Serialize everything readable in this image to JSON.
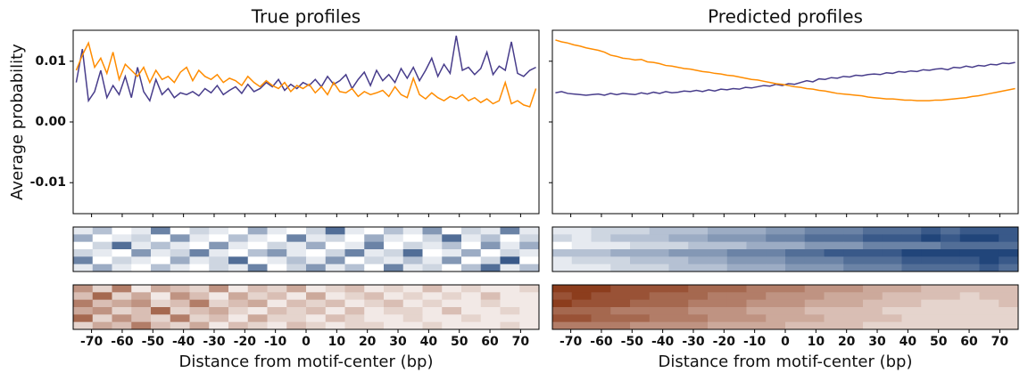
{
  "chart_data": [
    {
      "type": "line",
      "title": "True profiles",
      "ylabel": "Average probability",
      "x": [
        -75,
        -73,
        -71,
        -69,
        -67,
        -65,
        -63,
        -61,
        -59,
        -57,
        -55,
        -53,
        -51,
        -49,
        -47,
        -45,
        -43,
        -41,
        -39,
        -37,
        -35,
        -33,
        -31,
        -29,
        -27,
        -25,
        -23,
        -21,
        -19,
        -17,
        -15,
        -13,
        -11,
        -9,
        -7,
        -5,
        -3,
        -1,
        1,
        3,
        5,
        7,
        9,
        11,
        13,
        15,
        17,
        19,
        21,
        23,
        25,
        27,
        29,
        31,
        33,
        35,
        37,
        39,
        41,
        43,
        45,
        47,
        49,
        51,
        53,
        55,
        57,
        59,
        61,
        63,
        65,
        67,
        69,
        71,
        73,
        75
      ],
      "xlim": [
        -76,
        76
      ],
      "xticks": [
        -70,
        -60,
        -50,
        -40,
        -30,
        -20,
        -10,
        0,
        10,
        20,
        30,
        40,
        50,
        60,
        70
      ],
      "xtick_labels": false,
      "ylim": [
        -0.0151,
        0.0151
      ],
      "yticks": [
        -0.01,
        {
          "value": 0,
          "label": "0.00"
        },
        0.01
      ],
      "ytick_labels": true,
      "series": [
        {
          "color": "#483d8b",
          "values": [
            0.0065,
            0.012,
            0.0035,
            0.005,
            0.0085,
            0.004,
            0.006,
            0.0045,
            0.0075,
            0.004,
            0.009,
            0.005,
            0.0035,
            0.007,
            0.0045,
            0.0055,
            0.004,
            0.0048,
            0.0045,
            0.005,
            0.0043,
            0.0055,
            0.0048,
            0.006,
            0.0045,
            0.0052,
            0.0058,
            0.0047,
            0.0062,
            0.005,
            0.0055,
            0.0065,
            0.0058,
            0.007,
            0.0052,
            0.0062,
            0.0055,
            0.0065,
            0.006,
            0.007,
            0.0058,
            0.0075,
            0.0062,
            0.0068,
            0.0078,
            0.0055,
            0.007,
            0.0082,
            0.006,
            0.0085,
            0.0068,
            0.0078,
            0.0065,
            0.0088,
            0.0072,
            0.009,
            0.0068,
            0.0085,
            0.0105,
            0.0075,
            0.0095,
            0.008,
            0.0142,
            0.0085,
            0.009,
            0.0078,
            0.0088,
            0.0115,
            0.0078,
            0.0092,
            0.0085,
            0.0132,
            0.008,
            0.0075,
            0.0085,
            0.009
          ]
        },
        {
          "color": "#ff8c00",
          "values": [
            0.0085,
            0.011,
            0.013,
            0.009,
            0.0105,
            0.008,
            0.0115,
            0.007,
            0.0095,
            0.0085,
            0.0075,
            0.009,
            0.0065,
            0.0085,
            0.007,
            0.0075,
            0.0065,
            0.0082,
            0.009,
            0.0068,
            0.0085,
            0.0075,
            0.007,
            0.0078,
            0.0065,
            0.0072,
            0.0068,
            0.006,
            0.0075,
            0.0065,
            0.0058,
            0.0068,
            0.006,
            0.0055,
            0.0065,
            0.005,
            0.006,
            0.0055,
            0.0062,
            0.0048,
            0.0058,
            0.0045,
            0.0065,
            0.005,
            0.0048,
            0.0055,
            0.0042,
            0.005,
            0.0045,
            0.0048,
            0.0052,
            0.0042,
            0.0058,
            0.0045,
            0.004,
            0.0072,
            0.0045,
            0.0038,
            0.0048,
            0.004,
            0.0035,
            0.0042,
            0.0038,
            0.0045,
            0.0035,
            0.004,
            0.0032,
            0.0038,
            0.003,
            0.0035,
            0.0065,
            0.003,
            0.0035,
            0.0028,
            0.0025,
            0.0055
          ]
        }
      ]
    },
    {
      "type": "line",
      "title": "Predicted profiles",
      "x": [
        -75,
        -73,
        -71,
        -69,
        -67,
        -65,
        -63,
        -61,
        -59,
        -57,
        -55,
        -53,
        -51,
        -49,
        -47,
        -45,
        -43,
        -41,
        -39,
        -37,
        -35,
        -33,
        -31,
        -29,
        -27,
        -25,
        -23,
        -21,
        -19,
        -17,
        -15,
        -13,
        -11,
        -9,
        -7,
        -5,
        -3,
        -1,
        1,
        3,
        5,
        7,
        9,
        11,
        13,
        15,
        17,
        19,
        21,
        23,
        25,
        27,
        29,
        31,
        33,
        35,
        37,
        39,
        41,
        43,
        45,
        47,
        49,
        51,
        53,
        55,
        57,
        59,
        61,
        63,
        65,
        67,
        69,
        71,
        73,
        75
      ],
      "xlim": [
        -76,
        76
      ],
      "xticks": [
        -70,
        -60,
        -50,
        -40,
        -30,
        -20,
        -10,
        0,
        10,
        20,
        30,
        40,
        50,
        60,
        70
      ],
      "xtick_labels": false,
      "ylim": [
        -0.0151,
        0.0151
      ],
      "yticks": [
        -0.01,
        0,
        0.01
      ],
      "ytick_labels": false,
      "series": [
        {
          "color": "#483d8b",
          "values": [
            0.0048,
            0.005,
            0.0047,
            0.0046,
            0.0045,
            0.0044,
            0.0045,
            0.0046,
            0.0044,
            0.0047,
            0.0045,
            0.0047,
            0.0046,
            0.0045,
            0.0048,
            0.0046,
            0.0049,
            0.0047,
            0.005,
            0.0048,
            0.0049,
            0.0051,
            0.005,
            0.0052,
            0.005,
            0.0053,
            0.0051,
            0.0054,
            0.0053,
            0.0055,
            0.0054,
            0.0057,
            0.0056,
            0.0058,
            0.006,
            0.0059,
            0.0062,
            0.006,
            0.0063,
            0.0062,
            0.0065,
            0.0068,
            0.0066,
            0.0071,
            0.007,
            0.0073,
            0.0072,
            0.0075,
            0.0074,
            0.0077,
            0.0076,
            0.0078,
            0.0079,
            0.0078,
            0.0081,
            0.008,
            0.0083,
            0.0082,
            0.0084,
            0.0083,
            0.0086,
            0.0085,
            0.0087,
            0.0088,
            0.0086,
            0.009,
            0.0089,
            0.0092,
            0.009,
            0.0093,
            0.0092,
            0.0095,
            0.0094,
            0.0097,
            0.0096,
            0.0098
          ]
        },
        {
          "color": "#ff8c00",
          "values": [
            0.0135,
            0.0132,
            0.013,
            0.0127,
            0.0125,
            0.0122,
            0.012,
            0.0118,
            0.0115,
            0.011,
            0.0108,
            0.0105,
            0.0104,
            0.0102,
            0.0103,
            0.0099,
            0.0098,
            0.0096,
            0.0093,
            0.0092,
            0.009,
            0.0088,
            0.0087,
            0.0085,
            0.0083,
            0.0082,
            0.008,
            0.0079,
            0.0077,
            0.0076,
            0.0074,
            0.0072,
            0.007,
            0.0069,
            0.0067,
            0.0065,
            0.0063,
            0.0062,
            0.006,
            0.0058,
            0.0057,
            0.0055,
            0.0054,
            0.0052,
            0.0051,
            0.0049,
            0.0047,
            0.0046,
            0.0045,
            0.0044,
            0.0043,
            0.0041,
            0.004,
            0.0039,
            0.0038,
            0.0038,
            0.0037,
            0.0036,
            0.0036,
            0.0035,
            0.0035,
            0.0035,
            0.0036,
            0.0036,
            0.0037,
            0.0038,
            0.0039,
            0.004,
            0.0042,
            0.0043,
            0.0045,
            0.0047,
            0.0049,
            0.0051,
            0.0053,
            0.0055
          ]
        }
      ]
    },
    {
      "type": "heatmap",
      "color": "#08306b",
      "xlim": [
        -76,
        76
      ],
      "zlim": [
        0,
        1
      ],
      "z": [
        [
          0.1,
          0.3,
          0,
          0.1,
          0.6,
          0,
          0.2,
          0.1,
          0,
          0.4,
          0.1,
          0,
          0.2,
          0.7,
          0.1,
          0,
          0.3,
          0.1,
          0.5,
          0,
          0.2,
          0.1,
          0.6,
          0.1
        ],
        [
          0.4,
          0,
          0.1,
          0.2,
          0,
          0.5,
          0.1,
          0,
          0.3,
          0.1,
          0,
          0.6,
          0.1,
          0.2,
          0,
          0.4,
          0.1,
          0,
          0.2,
          0.7,
          0.1,
          0.3,
          0,
          0.2
        ],
        [
          0,
          0.2,
          0.7,
          0.1,
          0.3,
          0.1,
          0,
          0.5,
          0.1,
          0,
          0.2,
          0.1,
          0.4,
          0,
          0.1,
          0.6,
          0,
          0.2,
          0.1,
          0.3,
          0,
          0.5,
          0.1,
          0.4
        ],
        [
          0.2,
          0.1,
          0,
          0.5,
          0.1,
          0.2,
          0.6,
          0.1,
          0,
          0.3,
          0.5,
          0.1,
          0,
          0.2,
          0.6,
          0.1,
          0.2,
          0.7,
          0,
          0.1,
          0.4,
          0,
          0.2,
          0.1
        ],
        [
          0.6,
          0,
          0.2,
          0.1,
          0,
          0.4,
          0.1,
          0.2,
          0.7,
          0,
          0.1,
          0.3,
          0.1,
          0.5,
          0,
          0.2,
          0.1,
          0.3,
          0.1,
          0.5,
          0,
          0.2,
          0.8,
          0
        ],
        [
          0.1,
          0.4,
          0.1,
          0,
          0.3,
          0.1,
          0,
          0.2,
          0.1,
          0.6,
          0,
          0.2,
          0.5,
          0.1,
          0.3,
          0,
          0.6,
          0.1,
          0.2,
          0,
          0.3,
          0.7,
          0.1,
          0.3
        ]
      ]
    },
    {
      "type": "heatmap",
      "color": "#08306b",
      "xlim": [
        -76,
        76
      ],
      "zlim": [
        0,
        1
      ],
      "z": [
        [
          0.1,
          0.1,
          0.2,
          0.2,
          0.2,
          0.3,
          0.3,
          0.3,
          0.4,
          0.4,
          0.4,
          0.5,
          0.5,
          0.6,
          0.6,
          0.6,
          0.7,
          0.7,
          0.7,
          0.8,
          0.7,
          0.8,
          0.8,
          0.8
        ],
        [
          0.2,
          0.1,
          0.2,
          0.3,
          0.3,
          0.3,
          0.4,
          0.4,
          0.5,
          0.5,
          0.5,
          0.6,
          0.6,
          0.7,
          0.7,
          0.7,
          0.8,
          0.8,
          0.8,
          0.9,
          0.8,
          0.9,
          0.9,
          0.8
        ],
        [
          0,
          0.1,
          0.1,
          0.1,
          0.2,
          0.2,
          0.2,
          0.3,
          0.3,
          0.3,
          0.4,
          0.4,
          0.4,
          0.5,
          0.5,
          0.5,
          0.6,
          0.6,
          0.6,
          0.6,
          0.7,
          0.7,
          0.7,
          0.7
        ],
        [
          0.3,
          0.3,
          0.3,
          0.4,
          0.4,
          0.4,
          0.5,
          0.5,
          0.5,
          0.6,
          0.6,
          0.6,
          0.7,
          0.7,
          0.8,
          0.8,
          0.8,
          0.8,
          0.9,
          0.9,
          0.9,
          0.9,
          0.9,
          0.9
        ],
        [
          0.1,
          0.2,
          0.2,
          0.2,
          0.3,
          0.3,
          0.3,
          0.4,
          0.4,
          0.5,
          0.5,
          0.5,
          0.6,
          0.6,
          0.6,
          0.7,
          0.7,
          0.7,
          0.8,
          0.8,
          0.8,
          0.8,
          0.9,
          0.8
        ],
        [
          0.1,
          0.1,
          0.1,
          0.2,
          0.2,
          0.2,
          0.3,
          0.3,
          0.3,
          0.4,
          0.4,
          0.4,
          0.5,
          0.5,
          0.5,
          0.6,
          0.6,
          0.6,
          0.7,
          0.7,
          0.7,
          0.7,
          0.8,
          0.7
        ]
      ]
    },
    {
      "type": "heatmap",
      "color": "#7f2704",
      "xlim": [
        -76,
        76
      ],
      "zlim": [
        0,
        1
      ],
      "xlabel": "Distance from motif-center (bp)",
      "xticks": [
        -70,
        -60,
        -50,
        -40,
        -30,
        -20,
        -10,
        0,
        10,
        20,
        30,
        40,
        50,
        60,
        70
      ],
      "xtick_labels": true,
      "z": [
        [
          0.5,
          0.2,
          0.6,
          0.1,
          0.4,
          0.3,
          0.2,
          0.5,
          0.1,
          0.3,
          0.2,
          0.4,
          0.1,
          0.2,
          0.3,
          0.1,
          0.2,
          0.1,
          0.3,
          0.1,
          0.2,
          0.1,
          0.1,
          0.2
        ],
        [
          0.3,
          0.7,
          0.2,
          0.4,
          0.1,
          0.5,
          0.3,
          0.1,
          0.4,
          0.2,
          0.3,
          0.1,
          0.4,
          0.1,
          0.2,
          0.3,
          0.1,
          0.2,
          0.1,
          0.2,
          0.1,
          0.3,
          0.1,
          0.1
        ],
        [
          0.6,
          0.3,
          0.4,
          0.5,
          0.2,
          0.3,
          0.6,
          0.2,
          0.3,
          0.4,
          0.1,
          0.3,
          0.2,
          0.3,
          0.1,
          0.2,
          0.3,
          0.1,
          0.2,
          0.1,
          0.1,
          0.2,
          0.1,
          0.1
        ],
        [
          0.4,
          0.5,
          0.2,
          0.3,
          0.7,
          0.2,
          0.3,
          0.4,
          0.2,
          0.1,
          0.3,
          0.2,
          0.3,
          0.1,
          0.3,
          0.1,
          0.2,
          0.2,
          0.1,
          0.3,
          0.1,
          0.1,
          0.2,
          0.1
        ],
        [
          0.7,
          0.2,
          0.5,
          0.3,
          0.2,
          0.6,
          0.2,
          0.3,
          0.1,
          0.4,
          0.2,
          0.2,
          0.1,
          0.3,
          0.2,
          0.1,
          0.1,
          0.2,
          0.1,
          0.1,
          0.2,
          0.1,
          0.1,
          0.1
        ],
        [
          0.2,
          0.4,
          0.3,
          0.6,
          0.3,
          0.2,
          0.4,
          0.1,
          0.3,
          0.2,
          0.1,
          0.3,
          0.2,
          0.1,
          0.2,
          0.2,
          0.1,
          0.1,
          0.2,
          0.1,
          0.1,
          0.1,
          0.2,
          0.1
        ]
      ]
    },
    {
      "type": "heatmap",
      "color": "#7f2704",
      "xlim": [
        -76,
        76
      ],
      "zlim": [
        0,
        1
      ],
      "xlabel": "Distance from motif-center (bp)",
      "xticks": [
        -70,
        -60,
        -50,
        -40,
        -30,
        -20,
        -10,
        0,
        10,
        20,
        30,
        40,
        50,
        60,
        70
      ],
      "xtick_labels": true,
      "z": [
        [
          0.9,
          0.9,
          0.9,
          0.8,
          0.8,
          0.8,
          0.8,
          0.7,
          0.7,
          0.7,
          0.6,
          0.6,
          0.6,
          0.5,
          0.5,
          0.5,
          0.4,
          0.4,
          0.4,
          0.3,
          0.3,
          0.3,
          0.3,
          0.3
        ],
        [
          0.8,
          0.9,
          0.8,
          0.8,
          0.8,
          0.7,
          0.7,
          0.7,
          0.6,
          0.6,
          0.6,
          0.5,
          0.5,
          0.5,
          0.4,
          0.4,
          0.4,
          0.3,
          0.3,
          0.3,
          0.3,
          0.2,
          0.3,
          0.3
        ],
        [
          0.9,
          0.8,
          0.8,
          0.8,
          0.7,
          0.7,
          0.7,
          0.6,
          0.6,
          0.6,
          0.5,
          0.5,
          0.5,
          0.4,
          0.4,
          0.4,
          0.3,
          0.3,
          0.3,
          0.2,
          0.2,
          0.2,
          0.2,
          0.3
        ],
        [
          0.7,
          0.7,
          0.7,
          0.6,
          0.6,
          0.6,
          0.6,
          0.5,
          0.5,
          0.5,
          0.4,
          0.4,
          0.4,
          0.3,
          0.3,
          0.3,
          0.3,
          0.2,
          0.2,
          0.2,
          0.2,
          0.2,
          0.2,
          0.2
        ],
        [
          0.8,
          0.8,
          0.7,
          0.7,
          0.7,
          0.6,
          0.6,
          0.6,
          0.5,
          0.5,
          0.5,
          0.4,
          0.4,
          0.4,
          0.3,
          0.3,
          0.3,
          0.3,
          0.2,
          0.2,
          0.2,
          0.2,
          0.2,
          0.2
        ],
        [
          0.6,
          0.6,
          0.6,
          0.6,
          0.5,
          0.5,
          0.5,
          0.5,
          0.4,
          0.4,
          0.4,
          0.4,
          0.3,
          0.3,
          0.3,
          0.3,
          0.2,
          0.2,
          0.2,
          0.2,
          0.2,
          0.2,
          0.2,
          0.2
        ]
      ]
    }
  ]
}
